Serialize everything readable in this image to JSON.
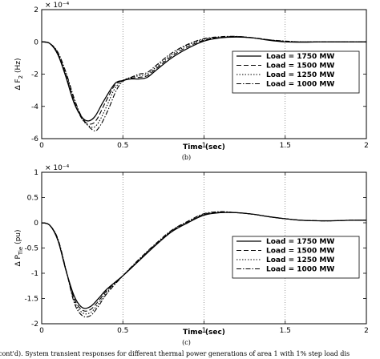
{
  "chart_data": [
    {
      "type": "line",
      "id": "top",
      "panel_label": "(b)",
      "exponent": "× 10⁻⁴",
      "xlabel": "Time (sec)",
      "ylabel_main": "Δ F",
      "ylabel_sub": "2",
      "ylabel_unit": " (Hz)",
      "xlim": [
        0,
        2
      ],
      "ylim": [
        -6,
        2
      ],
      "xticks": [
        0,
        0.5,
        1,
        1.5,
        2
      ],
      "yticks": [
        -6,
        -4,
        -2,
        0,
        2
      ],
      "xtick_labels": [
        "0",
        "0.5",
        "1",
        "1.5",
        "2"
      ],
      "ytick_labels": [
        "-6",
        "-4",
        "-2",
        "0",
        "2"
      ],
      "grid": "vertical",
      "legend_position": "right",
      "series": [
        {
          "name": "Load = 1750 MW",
          "dash": "solid",
          "peak": -4.9,
          "peak_t": 0.29,
          "x": [
            0,
            0.05,
            0.1,
            0.15,
            0.2,
            0.25,
            0.29,
            0.33,
            0.38,
            0.45,
            0.5,
            0.55,
            0.6,
            0.65,
            0.7,
            0.8,
            0.9,
            1.0,
            1.1,
            1.2,
            1.3,
            1.4,
            1.5,
            1.6,
            1.7,
            1.8,
            1.9,
            2.0
          ],
          "y": [
            0,
            -0.1,
            -0.8,
            -2.2,
            -3.8,
            -4.7,
            -4.9,
            -4.6,
            -3.7,
            -2.6,
            -2.4,
            -2.3,
            -2.3,
            -2.2,
            -1.8,
            -1.0,
            -0.4,
            0.05,
            0.25,
            0.3,
            0.25,
            0.1,
            0.0,
            -0.02,
            0.0,
            0.0,
            0.0,
            0.0
          ]
        },
        {
          "name": "Load = 1500 MW",
          "dash": "long",
          "peak": -5.1,
          "peak_t": 0.3,
          "x": [
            0,
            0.05,
            0.1,
            0.15,
            0.2,
            0.25,
            0.3,
            0.34,
            0.39,
            0.45,
            0.5,
            0.55,
            0.6,
            0.65,
            0.7,
            0.8,
            0.9,
            1.0,
            1.1,
            1.2,
            1.3,
            1.4,
            1.5,
            1.6,
            1.7,
            1.8,
            1.9,
            2.0
          ],
          "y": [
            0,
            -0.1,
            -0.75,
            -2.1,
            -3.7,
            -4.8,
            -5.1,
            -4.8,
            -3.8,
            -2.7,
            -2.4,
            -2.25,
            -2.2,
            -2.1,
            -1.7,
            -0.9,
            -0.3,
            0.1,
            0.28,
            0.32,
            0.25,
            0.12,
            0.03,
            0.0,
            0.0,
            0.0,
            0.0,
            0.0
          ]
        },
        {
          "name": "Load = 1250 MW",
          "dash": "dot",
          "peak": -5.3,
          "peak_t": 0.31,
          "x": [
            0,
            0.05,
            0.1,
            0.15,
            0.2,
            0.25,
            0.31,
            0.35,
            0.4,
            0.45,
            0.5,
            0.55,
            0.6,
            0.65,
            0.7,
            0.8,
            0.9,
            1.0,
            1.1,
            1.2,
            1.3,
            1.4,
            1.5,
            1.6,
            1.7,
            1.8,
            1.9,
            2.0
          ],
          "y": [
            0,
            -0.1,
            -0.7,
            -2.0,
            -3.6,
            -4.8,
            -5.3,
            -5.0,
            -4.0,
            -2.9,
            -2.4,
            -2.2,
            -2.1,
            -2.0,
            -1.6,
            -0.8,
            -0.2,
            0.15,
            0.3,
            0.33,
            0.25,
            0.12,
            0.04,
            0.0,
            0.0,
            0.0,
            0.0,
            0.0
          ]
        },
        {
          "name": "Load = 1000 MW",
          "dash": "dashdot",
          "peak": -5.5,
          "peak_t": 0.32,
          "x": [
            0,
            0.05,
            0.1,
            0.15,
            0.2,
            0.25,
            0.32,
            0.36,
            0.41,
            0.46,
            0.5,
            0.55,
            0.6,
            0.65,
            0.7,
            0.8,
            0.9,
            1.0,
            1.1,
            1.2,
            1.3,
            1.4,
            1.5,
            1.6,
            1.7,
            1.8,
            1.9,
            2.0
          ],
          "y": [
            0,
            -0.1,
            -0.65,
            -1.9,
            -3.5,
            -4.7,
            -5.5,
            -5.2,
            -4.2,
            -3.0,
            -2.45,
            -2.2,
            -2.0,
            -1.9,
            -1.5,
            -0.7,
            -0.15,
            0.2,
            0.32,
            0.34,
            0.26,
            0.13,
            0.05,
            0.0,
            0.0,
            0.0,
            0.0,
            0.0
          ]
        }
      ]
    },
    {
      "type": "line",
      "id": "bottom",
      "panel_label": "(c)",
      "exponent": "× 10⁻⁴",
      "xlabel": "Time (sec)",
      "ylabel_main": "Δ P",
      "ylabel_sub": "Tie",
      "ylabel_unit": " (pu)",
      "xlim": [
        0,
        2
      ],
      "ylim": [
        -2,
        1
      ],
      "xticks": [
        0,
        0.5,
        1,
        1.5,
        2
      ],
      "yticks": [
        -2,
        -1.5,
        -1,
        -0.5,
        0,
        0.5,
        1
      ],
      "xtick_labels": [
        "0",
        "0.5",
        "1",
        "1.5",
        "2"
      ],
      "ytick_labels": [
        "-2",
        "-1.5",
        "-1",
        "-0.5",
        "0",
        "0.5",
        "1"
      ],
      "grid": "vertical",
      "legend_position": "right",
      "series": [
        {
          "name": "Load = 1750 MW",
          "dash": "solid",
          "x": [
            0,
            0.05,
            0.1,
            0.15,
            0.2,
            0.25,
            0.3,
            0.35,
            0.4,
            0.5,
            0.6,
            0.7,
            0.8,
            0.9,
            1.0,
            1.1,
            1.2,
            1.3,
            1.4,
            1.5,
            1.6,
            1.7,
            1.8,
            1.9,
            2.0
          ],
          "y": [
            0,
            -0.05,
            -0.35,
            -0.95,
            -1.45,
            -1.68,
            -1.66,
            -1.5,
            -1.32,
            -1.05,
            -0.75,
            -0.45,
            -0.18,
            0.0,
            0.15,
            0.2,
            0.2,
            0.17,
            0.12,
            0.08,
            0.05,
            0.04,
            0.04,
            0.05,
            0.05
          ]
        },
        {
          "name": "Load = 1500 MW",
          "dash": "long",
          "x": [
            0,
            0.05,
            0.1,
            0.15,
            0.2,
            0.25,
            0.3,
            0.35,
            0.4,
            0.5,
            0.6,
            0.7,
            0.8,
            0.9,
            1.0,
            1.1,
            1.2,
            1.3,
            1.4,
            1.5,
            1.6,
            1.7,
            1.8,
            1.9,
            2.0
          ],
          "y": [
            0,
            -0.05,
            -0.34,
            -0.95,
            -1.5,
            -1.73,
            -1.72,
            -1.55,
            -1.35,
            -1.05,
            -0.74,
            -0.44,
            -0.17,
            0.01,
            0.16,
            0.21,
            0.2,
            0.17,
            0.12,
            0.08,
            0.05,
            0.04,
            0.04,
            0.05,
            0.05
          ]
        },
        {
          "name": "Load = 1250 MW",
          "dash": "dot",
          "x": [
            0,
            0.05,
            0.1,
            0.15,
            0.2,
            0.25,
            0.3,
            0.35,
            0.4,
            0.5,
            0.6,
            0.7,
            0.8,
            0.9,
            1.0,
            1.1,
            1.2,
            1.3,
            1.4,
            1.5,
            1.6,
            1.7,
            1.8,
            1.9,
            2.0
          ],
          "y": [
            0,
            -0.05,
            -0.33,
            -0.94,
            -1.54,
            -1.78,
            -1.78,
            -1.6,
            -1.38,
            -1.05,
            -0.73,
            -0.43,
            -0.16,
            0.02,
            0.17,
            0.21,
            0.2,
            0.17,
            0.12,
            0.08,
            0.05,
            0.04,
            0.04,
            0.05,
            0.05
          ]
        },
        {
          "name": "Load = 1000 MW",
          "dash": "dashdot",
          "x": [
            0,
            0.05,
            0.1,
            0.15,
            0.2,
            0.25,
            0.3,
            0.35,
            0.4,
            0.5,
            0.6,
            0.7,
            0.8,
            0.9,
            1.0,
            1.1,
            1.2,
            1.3,
            1.4,
            1.5,
            1.6,
            1.7,
            1.8,
            1.9,
            2.0
          ],
          "y": [
            0,
            -0.05,
            -0.32,
            -0.93,
            -1.58,
            -1.84,
            -1.84,
            -1.65,
            -1.41,
            -1.05,
            -0.72,
            -0.42,
            -0.15,
            0.03,
            0.18,
            0.22,
            0.2,
            0.17,
            0.12,
            0.08,
            0.05,
            0.04,
            0.04,
            0.05,
            0.05
          ]
        }
      ]
    }
  ],
  "caption": "cont'd). System transient responses for different thermal power generations of area 1 with 1% step load dis"
}
